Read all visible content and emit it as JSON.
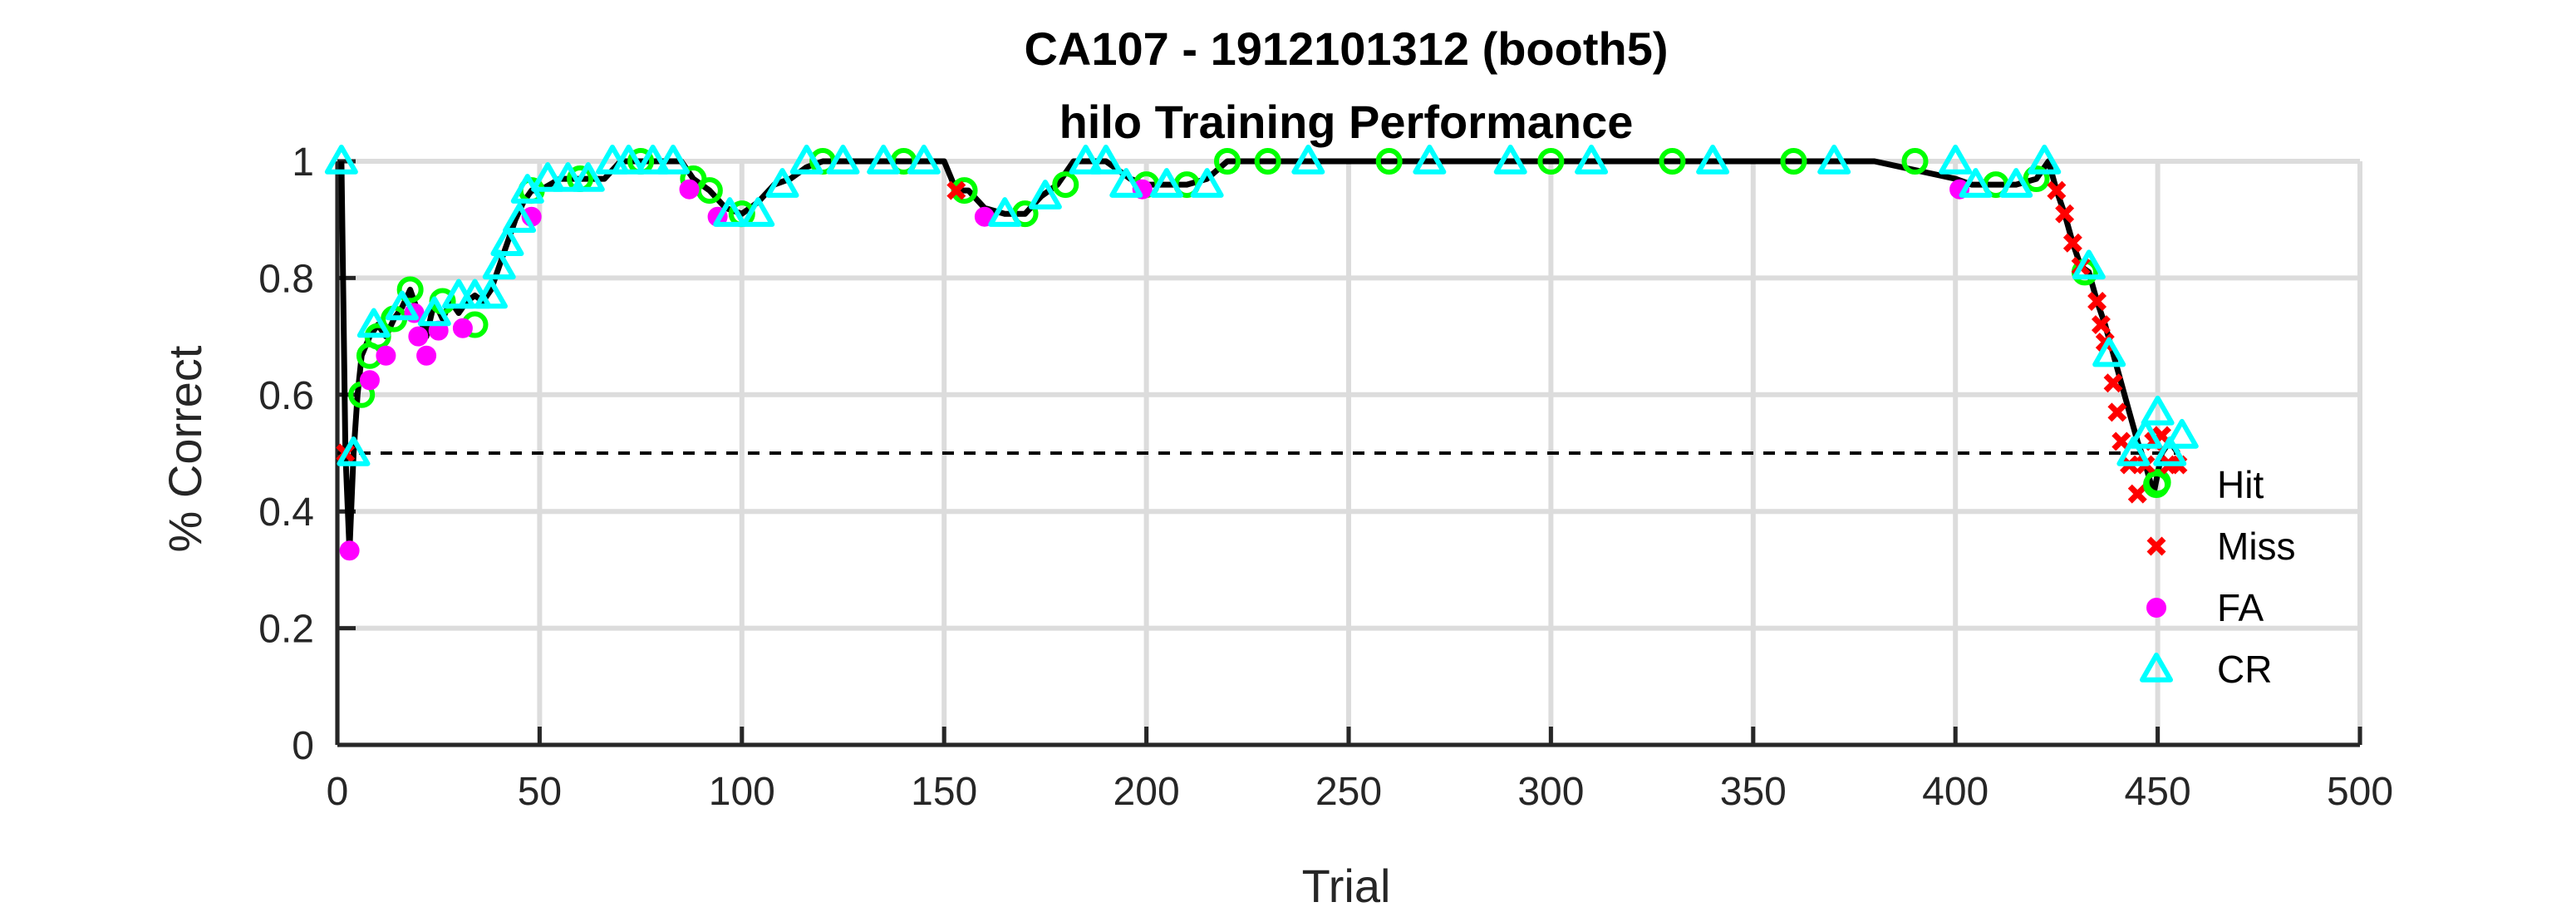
{
  "chart_data": {
    "type": "line",
    "title": "CA107 - 1912101312 (booth5)",
    "subtitle": "hilo Training Performance",
    "xlabel": "Trial",
    "ylabel": "% Correct",
    "xlim": [
      0,
      500
    ],
    "ylim": [
      0,
      1
    ],
    "xticks": [
      "0",
      "50",
      "100",
      "150",
      "200",
      "250",
      "300",
      "350",
      "400",
      "450",
      "500"
    ],
    "yticks": [
      "0",
      "0.2",
      "0.4",
      "0.6",
      "0.8",
      "1"
    ],
    "grid": true,
    "reference_line": {
      "y": 0.5,
      "style": "dashed"
    },
    "legend": {
      "placement": "bottom-right",
      "entries": [
        "Hit",
        "Miss",
        "FA",
        "CR"
      ]
    },
    "colors": {
      "line": "#000000",
      "Hit": "#00ff00",
      "Miss": "#ff0000",
      "FA": "#ff00ff",
      "CR": "#00ffff",
      "reference": "#000000"
    },
    "line": {
      "x": [
        1,
        2,
        3,
        4,
        5,
        6,
        8,
        10,
        12,
        14,
        16,
        18,
        20,
        22,
        24,
        26,
        28,
        30,
        32,
        34,
        36,
        38,
        40,
        42,
        44,
        46,
        48,
        50,
        55,
        60,
        66,
        70,
        75,
        80,
        85,
        88,
        92,
        96,
        100,
        104,
        108,
        112,
        116,
        120,
        130,
        140,
        150,
        153,
        156,
        160,
        165,
        170,
        174,
        178,
        182,
        186,
        190,
        196,
        200,
        205,
        210,
        215,
        220,
        225,
        250,
        300,
        350,
        380,
        400,
        404,
        410,
        415,
        420,
        423,
        425,
        427,
        429,
        431,
        433,
        435,
        437,
        439,
        441,
        443,
        445,
        447,
        449,
        451,
        453,
        455
      ],
      "y": [
        1.0,
        0.5,
        0.333,
        0.5,
        0.6,
        0.667,
        0.7,
        0.72,
        0.7,
        0.73,
        0.75,
        0.78,
        0.74,
        0.7,
        0.76,
        0.73,
        0.76,
        0.74,
        0.76,
        0.77,
        0.76,
        0.78,
        0.82,
        0.86,
        0.9,
        0.93,
        0.95,
        0.95,
        0.97,
        0.97,
        0.97,
        1.0,
        1.0,
        1.0,
        1.0,
        0.97,
        0.95,
        0.92,
        0.91,
        0.93,
        0.96,
        0.97,
        0.99,
        1.0,
        1.0,
        1.0,
        1.0,
        0.95,
        0.95,
        0.92,
        0.91,
        0.91,
        0.94,
        0.96,
        1.0,
        1.0,
        1.0,
        0.97,
        0.96,
        0.96,
        0.96,
        0.97,
        1.0,
        1.0,
        1.0,
        1.0,
        1.0,
        1.0,
        0.97,
        0.96,
        0.96,
        0.96,
        0.97,
        1.0,
        0.95,
        0.91,
        0.86,
        0.82,
        0.81,
        0.76,
        0.72,
        0.67,
        0.62,
        0.57,
        0.52,
        0.48,
        0.43,
        0.5,
        0.52,
        0.5
      ]
    },
    "series": [
      {
        "name": "Hit",
        "marker": "circle",
        "points": [
          [
            6,
            0.6
          ],
          [
            8,
            0.667
          ],
          [
            10,
            0.7
          ],
          [
            14,
            0.73
          ],
          [
            18,
            0.78
          ],
          [
            26,
            0.76
          ],
          [
            34,
            0.72
          ],
          [
            48,
            0.95
          ],
          [
            60,
            0.97
          ],
          [
            75,
            1.0
          ],
          [
            88,
            0.97
          ],
          [
            92,
            0.95
          ],
          [
            100,
            0.91
          ],
          [
            120,
            1.0
          ],
          [
            140,
            1.0
          ],
          [
            155,
            0.95
          ],
          [
            170,
            0.91
          ],
          [
            180,
            0.96
          ],
          [
            200,
            0.96
          ],
          [
            210,
            0.96
          ],
          [
            220,
            1.0
          ],
          [
            230,
            1.0
          ],
          [
            260,
            1.0
          ],
          [
            300,
            1.0
          ],
          [
            330,
            1.0
          ],
          [
            360,
            1.0
          ],
          [
            390,
            1.0
          ],
          [
            410,
            0.96
          ],
          [
            420,
            0.97
          ],
          [
            432,
            0.81
          ],
          [
            450,
            0.45
          ]
        ]
      },
      {
        "name": "Miss",
        "marker": "x",
        "points": [
          [
            2,
            0.5
          ],
          [
            153,
            0.95
          ],
          [
            425,
            0.95
          ],
          [
            427,
            0.91
          ],
          [
            429,
            0.86
          ],
          [
            431,
            0.82
          ],
          [
            435,
            0.76
          ],
          [
            436,
            0.72
          ],
          [
            437,
            0.69
          ],
          [
            439,
            0.62
          ],
          [
            440,
            0.57
          ],
          [
            441,
            0.52
          ],
          [
            443,
            0.48
          ],
          [
            445,
            0.43
          ],
          [
            447,
            0.48
          ],
          [
            449,
            0.52
          ],
          [
            451,
            0.53
          ],
          [
            453,
            0.48
          ],
          [
            455,
            0.48
          ]
        ]
      },
      {
        "name": "FA",
        "marker": "dot",
        "points": [
          [
            3,
            0.333
          ],
          [
            8,
            0.625
          ],
          [
            12,
            0.667
          ],
          [
            19,
            0.74
          ],
          [
            20,
            0.7
          ],
          [
            22,
            0.667
          ],
          [
            25,
            0.71
          ],
          [
            31,
            0.714
          ],
          [
            48,
            0.905
          ],
          [
            87,
            0.952
          ],
          [
            94,
            0.905
          ],
          [
            160,
            0.905
          ],
          [
            199,
            0.952
          ],
          [
            401,
            0.952
          ]
        ]
      },
      {
        "name": "CR",
        "marker": "triangle",
        "points": [
          [
            1,
            1.0
          ],
          [
            4,
            0.5
          ],
          [
            9,
            0.72
          ],
          [
            16,
            0.75
          ],
          [
            24,
            0.74
          ],
          [
            30,
            0.77
          ],
          [
            34,
            0.77
          ],
          [
            38,
            0.77
          ],
          [
            40,
            0.82
          ],
          [
            42,
            0.86
          ],
          [
            45,
            0.9
          ],
          [
            47,
            0.95
          ],
          [
            52,
            0.97
          ],
          [
            57,
            0.97
          ],
          [
            62,
            0.97
          ],
          [
            68,
            1.0
          ],
          [
            72,
            1.0
          ],
          [
            78,
            1.0
          ],
          [
            83,
            1.0
          ],
          [
            97,
            0.91
          ],
          [
            104,
            0.91
          ],
          [
            110,
            0.96
          ],
          [
            116,
            1.0
          ],
          [
            125,
            1.0
          ],
          [
            135,
            1.0
          ],
          [
            145,
            1.0
          ],
          [
            165,
            0.91
          ],
          [
            175,
            0.94
          ],
          [
            185,
            1.0
          ],
          [
            190,
            1.0
          ],
          [
            195,
            0.96
          ],
          [
            205,
            0.96
          ],
          [
            215,
            0.96
          ],
          [
            240,
            1.0
          ],
          [
            270,
            1.0
          ],
          [
            290,
            1.0
          ],
          [
            310,
            1.0
          ],
          [
            340,
            1.0
          ],
          [
            370,
            1.0
          ],
          [
            400,
            1.0
          ],
          [
            405,
            0.96
          ],
          [
            415,
            0.96
          ],
          [
            422,
            1.0
          ],
          [
            433,
            0.82
          ],
          [
            438,
            0.67
          ],
          [
            444,
            0.5
          ],
          [
            447,
            0.53
          ],
          [
            450,
            0.57
          ],
          [
            453,
            0.5
          ],
          [
            456,
            0.53
          ]
        ]
      }
    ]
  }
}
